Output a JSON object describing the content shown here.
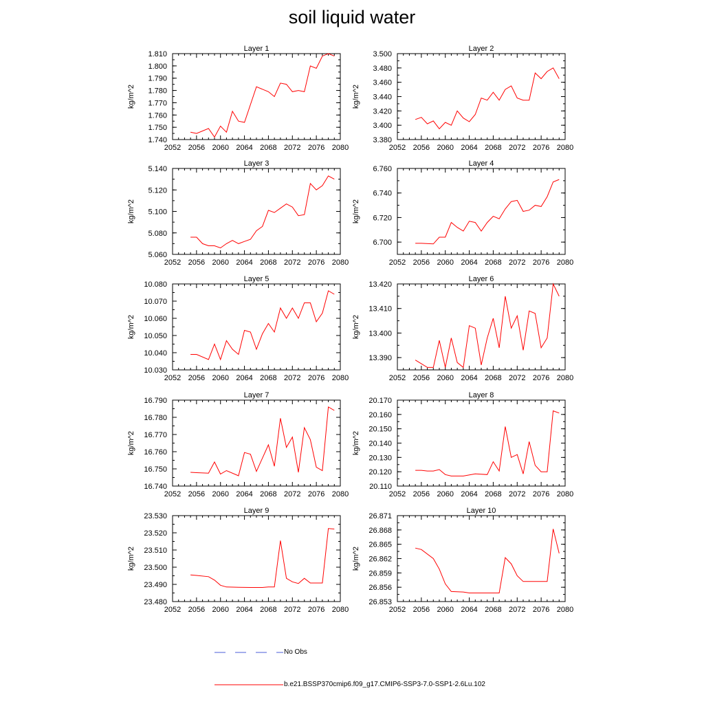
{
  "title": "soil liquid water",
  "legend": {
    "obs_label": "No Obs",
    "obs_color": "#4a5bd8",
    "model_label": "b.e21.BSSP370cmip6.f09_g17.CMIP6-SSP3-7.0-SSP1-2.6Lu.102",
    "model_color": "#ff0000"
  },
  "chart_data": [
    {
      "type": "line",
      "title": "Layer 1",
      "ylabel": "kg/m^2",
      "xlim": [
        2052,
        2080
      ],
      "x_ticks": [
        "2052",
        "2056",
        "2060",
        "2064",
        "2068",
        "2072",
        "2076",
        "2080"
      ],
      "ylim": [
        1.74,
        1.81
      ],
      "y_ticks": [
        "1.740",
        "1.750",
        "1.760",
        "1.770",
        "1.780",
        "1.790",
        "1.800",
        "1.810"
      ],
      "grid": false,
      "series": [
        {
          "x": [
            2055,
            2056,
            2058,
            2059,
            2060,
            2061,
            2062,
            2063,
            2064,
            2066,
            2068,
            2069,
            2070,
            2071,
            2072,
            2073,
            2074,
            2075,
            2076,
            2077,
            2078,
            2079
          ],
          "y": [
            1.746,
            1.745,
            1.749,
            1.742,
            1.751,
            1.746,
            1.763,
            1.755,
            1.754,
            1.783,
            1.779,
            1.775,
            1.786,
            1.785,
            1.779,
            1.78,
            1.779,
            1.8,
            1.798,
            1.808,
            1.81,
            1.808
          ]
        }
      ]
    },
    {
      "type": "line",
      "title": "Layer 2",
      "ylabel": "kg/m^2",
      "xlim": [
        2052,
        2080
      ],
      "x_ticks": [
        "2052",
        "2056",
        "2060",
        "2064",
        "2068",
        "2072",
        "2076",
        "2080"
      ],
      "ylim": [
        3.38,
        3.5
      ],
      "y_ticks": [
        "3.380",
        "3.400",
        "3.420",
        "3.440",
        "3.460",
        "3.480",
        "3.500"
      ],
      "grid": false,
      "series": [
        {
          "x": [
            2055,
            2056,
            2057,
            2058,
            2059,
            2060,
            2061,
            2062,
            2063,
            2064,
            2065,
            2066,
            2067,
            2068,
            2069,
            2070,
            2071,
            2072,
            2073,
            2074,
            2075,
            2076,
            2077,
            2078,
            2079
          ],
          "y": [
            3.408,
            3.411,
            3.402,
            3.406,
            3.395,
            3.404,
            3.4,
            3.42,
            3.41,
            3.405,
            3.415,
            3.438,
            3.435,
            3.446,
            3.435,
            3.45,
            3.455,
            3.438,
            3.435,
            3.435,
            3.473,
            3.465,
            3.475,
            3.48,
            3.465
          ]
        }
      ]
    },
    {
      "type": "line",
      "title": "Layer 3",
      "ylabel": "kg/m^2",
      "xlim": [
        2052,
        2080
      ],
      "x_ticks": [
        "2052",
        "2056",
        "2060",
        "2064",
        "2068",
        "2072",
        "2076",
        "2080"
      ],
      "ylim": [
        5.06,
        5.14
      ],
      "y_ticks": [
        "5.060",
        "5.080",
        "5.100",
        "5.120",
        "5.140"
      ],
      "grid": false,
      "series": [
        {
          "x": [
            2055,
            2056,
            2057,
            2058,
            2059,
            2060,
            2061,
            2062,
            2063,
            2064,
            2065,
            2066,
            2067,
            2068,
            2069,
            2070,
            2071,
            2072,
            2073,
            2074,
            2075,
            2076,
            2077,
            2078,
            2079
          ],
          "y": [
            5.076,
            5.076,
            5.07,
            5.068,
            5.068,
            5.066,
            5.07,
            5.073,
            5.07,
            5.072,
            5.074,
            5.082,
            5.086,
            5.101,
            5.099,
            5.103,
            5.107,
            5.104,
            5.096,
            5.097,
            5.126,
            5.12,
            5.124,
            5.133,
            5.13
          ]
        }
      ]
    },
    {
      "type": "line",
      "title": "Layer 4",
      "ylabel": "kg/m^2",
      "xlim": [
        2052,
        2080
      ],
      "x_ticks": [
        "2052",
        "2056",
        "2060",
        "2064",
        "2068",
        "2072",
        "2076",
        "2080"
      ],
      "ylim": [
        6.69,
        6.76
      ],
      "y_ticks": [
        "6.700",
        "6.720",
        "6.740",
        "6.760"
      ],
      "grid": false,
      "series": [
        {
          "x": [
            2055,
            2056,
            2058,
            2059,
            2060,
            2061,
            2062,
            2063,
            2064,
            2065,
            2066,
            2067,
            2068,
            2069,
            2070,
            2071,
            2072,
            2073,
            2074,
            2075,
            2076,
            2077,
            2078,
            2079
          ],
          "y": [
            6.699,
            6.699,
            6.6985,
            6.704,
            6.704,
            6.716,
            6.712,
            6.709,
            6.717,
            6.716,
            6.709,
            6.716,
            6.721,
            6.719,
            6.727,
            6.733,
            6.734,
            6.725,
            6.726,
            6.73,
            6.729,
            6.737,
            6.749,
            6.751
          ]
        }
      ]
    },
    {
      "type": "line",
      "title": "Layer 5",
      "ylabel": "kg/m^2",
      "xlim": [
        2052,
        2080
      ],
      "x_ticks": [
        "2052",
        "2056",
        "2060",
        "2064",
        "2068",
        "2072",
        "2076",
        "2080"
      ],
      "ylim": [
        10.03,
        10.08
      ],
      "y_ticks": [
        "10.030",
        "10.040",
        "10.050",
        "10.060",
        "10.070",
        "10.080"
      ],
      "grid": false,
      "series": [
        {
          "x": [
            2055,
            2056,
            2058,
            2059,
            2060,
            2061,
            2062,
            2063,
            2064,
            2065,
            2066,
            2067,
            2068,
            2069,
            2070,
            2071,
            2072,
            2073,
            2074,
            2075,
            2076,
            2077,
            2078,
            2079
          ],
          "y": [
            10.039,
            10.039,
            10.036,
            10.045,
            10.036,
            10.047,
            10.042,
            10.039,
            10.053,
            10.052,
            10.042,
            10.051,
            10.057,
            10.052,
            10.066,
            10.06,
            10.066,
            10.06,
            10.069,
            10.069,
            10.058,
            10.063,
            10.076,
            10.074
          ]
        }
      ]
    },
    {
      "type": "line",
      "title": "Layer 6",
      "ylabel": "kg/m^2",
      "xlim": [
        2052,
        2080
      ],
      "x_ticks": [
        "2052",
        "2056",
        "2060",
        "2064",
        "2068",
        "2072",
        "2076",
        "2080"
      ],
      "ylim": [
        13.385,
        13.42
      ],
      "y_ticks": [
        "13.390",
        "13.400",
        "13.410",
        "13.420"
      ],
      "grid": false,
      "series": [
        {
          "x": [
            2055,
            2056,
            2057,
            2058,
            2059,
            2060,
            2061,
            2062,
            2063,
            2064,
            2065,
            2066,
            2067,
            2068,
            2069,
            2070,
            2071,
            2072,
            2073,
            2074,
            2075,
            2076,
            2077,
            2078,
            2079
          ],
          "y": [
            13.389,
            13.3875,
            13.386,
            13.386,
            13.397,
            13.386,
            13.398,
            13.388,
            13.386,
            13.403,
            13.402,
            13.387,
            13.398,
            13.406,
            13.394,
            13.415,
            13.402,
            13.407,
            13.393,
            13.409,
            13.408,
            13.394,
            13.398,
            13.42,
            13.415
          ]
        }
      ]
    },
    {
      "type": "line",
      "title": "Layer 7",
      "ylabel": "kg/m^2",
      "xlim": [
        2052,
        2080
      ],
      "x_ticks": [
        "2052",
        "2056",
        "2060",
        "2064",
        "2068",
        "2072",
        "2076",
        "2080"
      ],
      "ylim": [
        16.74,
        16.79
      ],
      "y_ticks": [
        "16.740",
        "16.750",
        "16.760",
        "16.770",
        "16.780",
        "16.790"
      ],
      "grid": false,
      "series": [
        {
          "x": [
            2055,
            2056,
            2058,
            2059,
            2060,
            2061,
            2063,
            2064,
            2065,
            2066,
            2068,
            2069,
            2070,
            2071,
            2072,
            2073,
            2074,
            2075,
            2076,
            2077,
            2078,
            2079
          ],
          "y": [
            16.748,
            16.7478,
            16.7475,
            16.754,
            16.747,
            16.749,
            16.746,
            16.7595,
            16.7585,
            16.7485,
            16.764,
            16.7515,
            16.7795,
            16.7625,
            16.7685,
            16.748,
            16.774,
            16.767,
            16.751,
            16.749,
            16.786,
            16.784
          ]
        }
      ]
    },
    {
      "type": "line",
      "title": "Layer 8",
      "ylabel": "kg/m^2",
      "xlim": [
        2052,
        2080
      ],
      "x_ticks": [
        "2052",
        "2056",
        "2060",
        "2064",
        "2068",
        "2072",
        "2076",
        "2080"
      ],
      "ylim": [
        20.11,
        20.17
      ],
      "y_ticks": [
        "20.110",
        "20.120",
        "20.130",
        "20.140",
        "20.150",
        "20.160",
        "20.170"
      ],
      "grid": false,
      "series": [
        {
          "x": [
            2055,
            2056,
            2057,
            2058,
            2059,
            2060,
            2061,
            2063,
            2065,
            2067,
            2068,
            2069,
            2070,
            2071,
            2072,
            2073,
            2074,
            2075,
            2076,
            2077,
            2078,
            2079
          ],
          "y": [
            20.121,
            20.121,
            20.1205,
            20.1205,
            20.1215,
            20.118,
            20.117,
            20.117,
            20.1185,
            20.118,
            20.127,
            20.1205,
            20.1515,
            20.13,
            20.132,
            20.1185,
            20.141,
            20.1245,
            20.12,
            20.12,
            20.1625,
            20.161
          ]
        }
      ]
    },
    {
      "type": "line",
      "title": "Layer 9",
      "ylabel": "kg/m^2",
      "xlim": [
        2052,
        2080
      ],
      "x_ticks": [
        "2052",
        "2056",
        "2060",
        "2064",
        "2068",
        "2072",
        "2076",
        "2080"
      ],
      "ylim": [
        23.48,
        23.53
      ],
      "y_ticks": [
        "23.480",
        "23.490",
        "23.500",
        "23.510",
        "23.520",
        "23.530"
      ],
      "grid": false,
      "series": [
        {
          "x": [
            2055,
            2056,
            2058,
            2059,
            2060,
            2061,
            2063,
            2065,
            2067,
            2068,
            2069,
            2070,
            2071,
            2072,
            2073,
            2074,
            2075,
            2076,
            2077,
            2078,
            2079
          ],
          "y": [
            23.4955,
            23.4952,
            23.4945,
            23.4925,
            23.4895,
            23.4885,
            23.4883,
            23.4882,
            23.4882,
            23.4885,
            23.4885,
            23.5155,
            23.4935,
            23.4915,
            23.4905,
            23.4935,
            23.4908,
            23.4908,
            23.4908,
            23.5225,
            23.5222
          ]
        }
      ]
    },
    {
      "type": "line",
      "title": "Layer 10",
      "ylabel": "kg/m^2",
      "xlim": [
        2052,
        2080
      ],
      "x_ticks": [
        "2052",
        "2056",
        "2060",
        "2064",
        "2068",
        "2072",
        "2076",
        "2080"
      ],
      "ylim": [
        26.853,
        26.871
      ],
      "y_ticks": [
        "26.853",
        "26.856",
        "26.859",
        "26.862",
        "26.865",
        "26.868",
        "26.871"
      ],
      "grid": false,
      "series": [
        {
          "x": [
            2055,
            2056,
            2058,
            2059,
            2060,
            2061,
            2063,
            2064,
            2066,
            2068,
            2069,
            2070,
            2071,
            2072,
            2073,
            2074,
            2075,
            2076,
            2077,
            2078,
            2079
          ],
          "y": [
            26.8642,
            26.8639,
            26.862,
            26.8598,
            26.8567,
            26.8551,
            26.855,
            26.8548,
            26.8548,
            26.8548,
            26.8548,
            26.8622,
            26.8609,
            26.8584,
            26.8572,
            26.8572,
            26.8572,
            26.8572,
            26.8572,
            26.8682,
            26.8631
          ]
        }
      ]
    }
  ]
}
